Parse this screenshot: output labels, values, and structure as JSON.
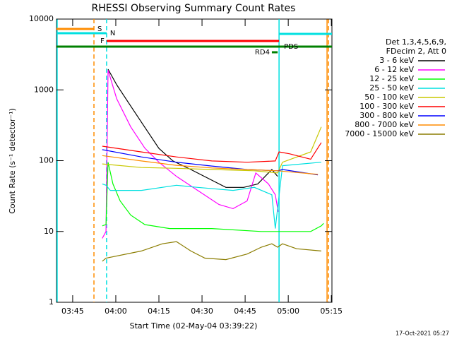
{
  "chart_data": {
    "type": "line",
    "title": "RHESSI Observing Summary Count Rates",
    "xlabel": "Start Time (02-May-04 03:39:22)",
    "ylabel": "Count Rate (s⁻¹ detector⁻¹)",
    "legend_header": [
      "Det 1,3,4,5,6,9,",
      "FDecim 2, Att 0"
    ],
    "footer": "17-Oct-2021 05:27",
    "log_y": true,
    "legend": "right",
    "xlim": [
      219.37,
      315.2
    ],
    "ylim": [
      1,
      10000
    ],
    "xticks": [
      {
        "value": 225,
        "label": "03:45"
      },
      {
        "value": 240,
        "label": "04:00"
      },
      {
        "value": 255,
        "label": "04:15"
      },
      {
        "value": 270,
        "label": "04:30"
      },
      {
        "value": 285,
        "label": "04:45"
      },
      {
        "value": 300,
        "label": "05:00"
      },
      {
        "value": 315,
        "label": "05:15"
      }
    ],
    "yticks": [
      1,
      10,
      100,
      1000,
      10000
    ],
    "series": [
      {
        "name": "3 - 6 keV",
        "color": "#000000",
        "x": [
          237.3,
          240.3,
          245.2,
          250.1,
          255.0,
          259.9,
          266.1,
          273.4,
          278.3,
          284.5,
          289.4,
          294.3,
          296.3
        ],
        "values": [
          1960,
          1180,
          590,
          296,
          149,
          99,
          75,
          53,
          42,
          42,
          47,
          75,
          60
        ]
      },
      {
        "name": "6 - 12 keV",
        "color": "#ff00ff",
        "x": [
          235.3,
          236.6,
          237.3,
          240.3,
          245.2,
          250.1,
          255.0,
          261.1,
          268.5,
          275.9,
          280.8,
          285.7,
          288.7,
          293.1,
          295.5,
          296.5
        ],
        "values": [
          8,
          10,
          1900,
          750,
          300,
          150,
          95,
          60,
          38,
          24,
          21,
          27,
          67,
          47,
          33,
          19
        ]
      },
      {
        "name": "12 - 25 keV",
        "color": "#00ff00",
        "x": [
          235.3,
          236.6,
          237.3,
          239.0,
          241.5,
          245.2,
          250.1,
          258.7,
          273.4,
          290.6,
          296.3,
          298.0,
          307.8,
          311.5,
          312.3
        ],
        "values": [
          12,
          12.5,
          95,
          47,
          27,
          17,
          12.5,
          11,
          11,
          10,
          10,
          10,
          10,
          12,
          13
        ]
      },
      {
        "name": "25 - 50 keV",
        "color": "#00e0e0",
        "x": [
          235.3,
          236.6,
          238.1,
          248.9,
          261.1,
          268.5,
          280.8,
          288.2,
          294.3,
          295.5,
          298.0,
          311.5
        ],
        "values": [
          47,
          45,
          38,
          38,
          45,
          42,
          38,
          42,
          33,
          11,
          85,
          95
        ]
      },
      {
        "name": "50 - 100 keV",
        "color": "#c8c800",
        "x": [
          235.3,
          248.9,
          261.1,
          273.4,
          288.2,
          296.3,
          298.0,
          307.8,
          311.5
        ],
        "values": [
          90,
          80,
          78,
          75,
          72,
          67,
          95,
          133,
          300
        ]
      },
      {
        "name": "100 - 300 keV",
        "color": "#ff0000",
        "x": [
          235.3,
          248.9,
          261.1,
          273.4,
          285.7,
          295.5,
          296.8,
          300.5,
          307.8,
          311.5
        ],
        "values": [
          160,
          133,
          113,
          99,
          95,
          99,
          133,
          125,
          105,
          180
        ]
      },
      {
        "name": "300 - 800 keV",
        "color": "#0000ff",
        "x": [
          235.3,
          248.9,
          261.1,
          273.4,
          285.7,
          296.3,
          298.0,
          310.3
        ],
        "values": [
          143,
          113,
          95,
          84,
          75,
          72,
          75,
          63
        ]
      },
      {
        "name": "800 - 7000 keV",
        "color": "#ff8c00",
        "x": [
          235.3,
          248.9,
          261.1,
          273.4,
          285.7,
          296.3,
          310.3
        ],
        "values": [
          118,
          99,
          86,
          79,
          75,
          72,
          64
        ]
      },
      {
        "name": "7000 - 15000 keV",
        "color": "#8b7d00",
        "x": [
          235.3,
          236.6,
          248.9,
          256.2,
          261.1,
          266.1,
          271.0,
          278.3,
          285.7,
          290.6,
          294.3,
          296.3,
          298.0,
          302.9,
          311.5
        ],
        "values": [
          3.8,
          4.2,
          5.3,
          6.7,
          7.2,
          5.3,
          4.2,
          4,
          4.8,
          6,
          6.7,
          6,
          6.7,
          5.7,
          5.3
        ]
      }
    ],
    "flags": [
      {
        "label": "S",
        "color": "#ff8c00",
        "start": 219.37,
        "end": 232.4
      },
      {
        "label": "N",
        "color": "#00e0e0",
        "start": 219.37,
        "end": 236.8
      },
      {
        "color": "#00e0e0",
        "start": 296.8,
        "end": 315.2
      },
      {
        "label": "F",
        "color": "#ff0000",
        "start": 236.8,
        "end": 296.8
      },
      {
        "color": "#008000",
        "start": 219.37,
        "end": 315.2
      },
      {
        "label": "RD4",
        "color": "#008000",
        "start": 294.3,
        "end": 296.3
      },
      {
        "label": "PDS",
        "color": "#008000",
        "start": 296.8,
        "end": 297.3
      }
    ],
    "vlines": [
      {
        "x": 219.6,
        "color": "#00e0e0",
        "dash": false
      },
      {
        "x": 232.4,
        "color": "#ff8c00",
        "dash": true
      },
      {
        "x": 236.8,
        "color": "#00e0e0",
        "dash": true
      },
      {
        "x": 296.8,
        "color": "#00e0e0",
        "dash": false
      },
      {
        "x": 313.5,
        "color": "#ff8c00",
        "dash": false
      },
      {
        "x": 314.0,
        "color": "#ff8c00",
        "dash": true
      }
    ]
  }
}
